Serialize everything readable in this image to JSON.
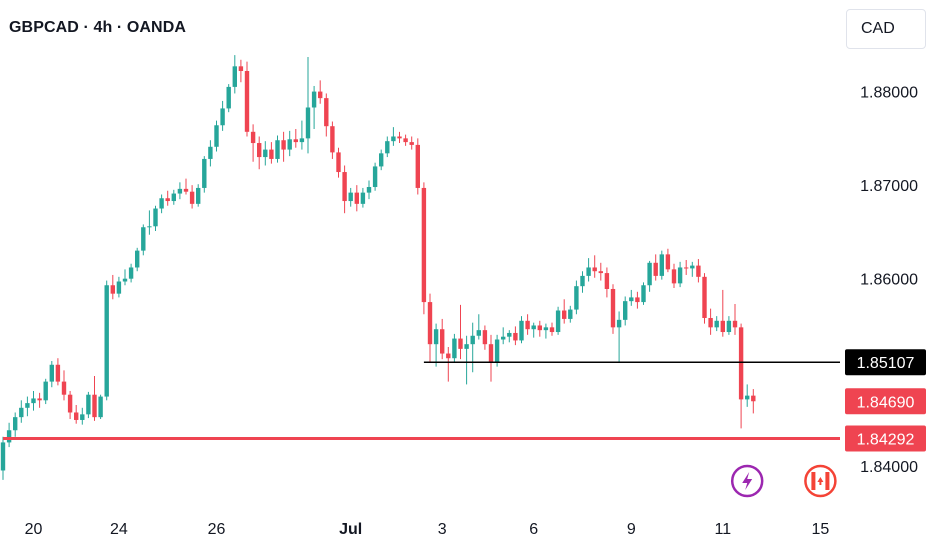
{
  "header": {
    "symbol_title": "GBPCAD · 4h · OANDA",
    "currency": "CAD"
  },
  "colors": {
    "up": "#26a69a",
    "down": "#ef4451",
    "support_line": "#ef4451",
    "level_line": "#000000",
    "events_icon": "#9c27b0",
    "flag_icon": "#f44336"
  },
  "chart_data": {
    "type": "candlestick",
    "ylim": [
      1.8372,
      1.8853
    ],
    "y_ticks": [
      {
        "value": 1.88,
        "label": "1.88000"
      },
      {
        "value": 1.87,
        "label": "1.87000"
      },
      {
        "value": 1.86,
        "label": "1.86000"
      },
      {
        "value": 1.84,
        "label": "1.84000"
      }
    ],
    "x_ticks": [
      {
        "index": 5,
        "label": "20"
      },
      {
        "index": 19,
        "label": "24"
      },
      {
        "index": 35,
        "label": "26"
      },
      {
        "index": 57,
        "label": "Jul"
      },
      {
        "index": 72,
        "label": "3"
      },
      {
        "index": 87,
        "label": "6"
      },
      {
        "index": 103,
        "label": "9"
      },
      {
        "index": 118,
        "label": "11"
      },
      {
        "index": 134,
        "label": "15"
      }
    ],
    "candles": [
      [
        1.8395,
        1.8431,
        1.8385,
        1.8425
      ],
      [
        1.8425,
        1.8446,
        1.842,
        1.8438
      ],
      [
        1.8438,
        1.8457,
        1.8431,
        1.8452
      ],
      [
        1.8452,
        1.847,
        1.8446,
        1.8462
      ],
      [
        1.8462,
        1.8474,
        1.8453,
        1.8467
      ],
      [
        1.8467,
        1.848,
        1.8459,
        1.8472
      ],
      [
        1.8472,
        1.8478,
        1.8462,
        1.847
      ],
      [
        1.847,
        1.8493,
        1.8466,
        1.849
      ],
      [
        1.849,
        1.8512,
        1.8484,
        1.8508
      ],
      [
        1.8508,
        1.8515,
        1.8486,
        1.849
      ],
      [
        1.849,
        1.8502,
        1.847,
        1.8476
      ],
      [
        1.8476,
        1.848,
        1.845,
        1.8457
      ],
      [
        1.8457,
        1.8465,
        1.8445,
        1.8449
      ],
      [
        1.8449,
        1.8462,
        1.8444,
        1.8455
      ],
      [
        1.8455,
        1.8479,
        1.8451,
        1.8476
      ],
      [
        1.8476,
        1.8496,
        1.8448,
        1.8452
      ],
      [
        1.8452,
        1.8476,
        1.845,
        1.8474
      ],
      [
        1.8474,
        1.8598,
        1.847,
        1.8593
      ],
      [
        1.8593,
        1.8604,
        1.8578,
        1.8584
      ],
      [
        1.8584,
        1.8602,
        1.858,
        1.8597
      ],
      [
        1.8597,
        1.861,
        1.8593,
        1.86
      ],
      [
        1.86,
        1.8616,
        1.8596,
        1.8612
      ],
      [
        1.8612,
        1.8633,
        1.8608,
        1.863
      ],
      [
        1.863,
        1.8658,
        1.8625,
        1.8655
      ],
      [
        1.8655,
        1.8673,
        1.8647,
        1.8656
      ],
      [
        1.8656,
        1.8678,
        1.8651,
        1.8675
      ],
      [
        1.8675,
        1.869,
        1.867,
        1.8686
      ],
      [
        1.8686,
        1.8694,
        1.8678,
        1.8683
      ],
      [
        1.8683,
        1.8695,
        1.8679,
        1.8691
      ],
      [
        1.8691,
        1.8703,
        1.8685,
        1.8696
      ],
      [
        1.8696,
        1.8707,
        1.869,
        1.8693
      ],
      [
        1.8693,
        1.87,
        1.8675,
        1.868
      ],
      [
        1.868,
        1.8701,
        1.8677,
        1.8697
      ],
      [
        1.8697,
        1.8731,
        1.8692,
        1.8728
      ],
      [
        1.8728,
        1.8748,
        1.872,
        1.8741
      ],
      [
        1.8741,
        1.8769,
        1.8736,
        1.8764
      ],
      [
        1.8764,
        1.879,
        1.8758,
        1.8782
      ],
      [
        1.8782,
        1.8808,
        1.8778,
        1.8805
      ],
      [
        1.8805,
        1.8839,
        1.8798,
        1.8827
      ],
      [
        1.8827,
        1.8834,
        1.881,
        1.8822
      ],
      [
        1.8822,
        1.8832,
        1.8752,
        1.8757
      ],
      [
        1.8757,
        1.8765,
        1.8725,
        1.8745
      ],
      [
        1.8745,
        1.8752,
        1.8717,
        1.873
      ],
      [
        1.873,
        1.8747,
        1.8721,
        1.8738
      ],
      [
        1.8738,
        1.8746,
        1.8723,
        1.8728
      ],
      [
        1.8728,
        1.8753,
        1.8724,
        1.8748
      ],
      [
        1.8748,
        1.8757,
        1.8725,
        1.8738
      ],
      [
        1.8738,
        1.8758,
        1.8731,
        1.8749
      ],
      [
        1.8749,
        1.876,
        1.874,
        1.8746
      ],
      [
        1.8746,
        1.8769,
        1.8738,
        1.875
      ],
      [
        1.875,
        1.8837,
        1.8734,
        1.8783
      ],
      [
        1.8783,
        1.8806,
        1.876,
        1.88
      ],
      [
        1.88,
        1.8812,
        1.8787,
        1.8793
      ],
      [
        1.8793,
        1.8798,
        1.8752,
        1.8763
      ],
      [
        1.8763,
        1.8768,
        1.8728,
        1.8735
      ],
      [
        1.8735,
        1.874,
        1.8708,
        1.8714
      ],
      [
        1.8714,
        1.8721,
        1.867,
        1.8683
      ],
      [
        1.8683,
        1.8697,
        1.8677,
        1.8692
      ],
      [
        1.8692,
        1.87,
        1.8672,
        1.868
      ],
      [
        1.868,
        1.8697,
        1.8676,
        1.8692
      ],
      [
        1.8692,
        1.8705,
        1.8685,
        1.8698
      ],
      [
        1.8698,
        1.8724,
        1.8694,
        1.872
      ],
      [
        1.872,
        1.8738,
        1.8716,
        1.8734
      ],
      [
        1.8734,
        1.8752,
        1.873,
        1.8747
      ],
      [
        1.8747,
        1.8762,
        1.8742,
        1.8752
      ],
      [
        1.8752,
        1.8757,
        1.8745,
        1.875
      ],
      [
        1.875,
        1.8754,
        1.8742,
        1.8746
      ],
      [
        1.8746,
        1.8752,
        1.8738,
        1.8743
      ],
      [
        1.8743,
        1.875,
        1.869,
        1.8697
      ],
      [
        1.8697,
        1.8703,
        1.8562,
        1.8575
      ],
      [
        1.8575,
        1.8584,
        1.8511,
        1.853
      ],
      [
        1.853,
        1.8552,
        1.8506,
        1.8546
      ],
      [
        1.8546,
        1.8557,
        1.8514,
        1.852
      ],
      [
        1.852,
        1.8527,
        1.849,
        1.8515
      ],
      [
        1.8515,
        1.8541,
        1.8511,
        1.8536
      ],
      [
        1.8536,
        1.8572,
        1.8514,
        1.8525
      ],
      [
        1.8525,
        1.8539,
        1.8487,
        1.853
      ],
      [
        1.853,
        1.8553,
        1.85,
        1.8539
      ],
      [
        1.8539,
        1.8562,
        1.8535,
        1.8545
      ],
      [
        1.8545,
        1.855,
        1.8524,
        1.853
      ],
      [
        1.853,
        1.854,
        1.849,
        1.851
      ],
      [
        1.851,
        1.854,
        1.8506,
        1.8535
      ],
      [
        1.8535,
        1.8548,
        1.853,
        1.8538
      ],
      [
        1.8538,
        1.8545,
        1.8532,
        1.8542
      ],
      [
        1.8542,
        1.8549,
        1.8529,
        1.8534
      ],
      [
        1.8534,
        1.856,
        1.8531,
        1.8555
      ],
      [
        1.8555,
        1.8562,
        1.854,
        1.8546
      ],
      [
        1.8546,
        1.8553,
        1.8537,
        1.855
      ],
      [
        1.855,
        1.8555,
        1.8538,
        1.8545
      ],
      [
        1.8545,
        1.8552,
        1.8536,
        1.8548
      ],
      [
        1.8548,
        1.8553,
        1.8539,
        1.8543
      ],
      [
        1.8543,
        1.857,
        1.854,
        1.8566
      ],
      [
        1.8566,
        1.8578,
        1.8552,
        1.8557
      ],
      [
        1.8557,
        1.8571,
        1.8553,
        1.8567
      ],
      [
        1.8567,
        1.8598,
        1.8562,
        1.8592
      ],
      [
        1.8592,
        1.8608,
        1.8585,
        1.8603
      ],
      [
        1.8603,
        1.8622,
        1.8597,
        1.8612
      ],
      [
        1.8612,
        1.8625,
        1.8601,
        1.8608
      ],
      [
        1.8608,
        1.8617,
        1.8598,
        1.8606
      ],
      [
        1.8606,
        1.8612,
        1.858,
        1.8589
      ],
      [
        1.8589,
        1.8594,
        1.8541,
        1.8548
      ],
      [
        1.8548,
        1.8565,
        1.851,
        1.8556
      ],
      [
        1.8556,
        1.8581,
        1.855,
        1.8576
      ],
      [
        1.8576,
        1.8588,
        1.8571,
        1.858
      ],
      [
        1.858,
        1.8586,
        1.8568,
        1.8575
      ],
      [
        1.8575,
        1.8596,
        1.8572,
        1.8593
      ],
      [
        1.8593,
        1.8619,
        1.8586,
        1.8617
      ],
      [
        1.8617,
        1.8626,
        1.8598,
        1.8603
      ],
      [
        1.8603,
        1.863,
        1.8599,
        1.8626
      ],
      [
        1.8626,
        1.8632,
        1.8607,
        1.861
      ],
      [
        1.861,
        1.8616,
        1.859,
        1.8595
      ],
      [
        1.8595,
        1.8618,
        1.8591,
        1.8612
      ],
      [
        1.8612,
        1.862,
        1.8604,
        1.8611
      ],
      [
        1.8611,
        1.8618,
        1.8602,
        1.8614
      ],
      [
        1.8614,
        1.8621,
        1.8596,
        1.8602
      ],
      [
        1.8602,
        1.8606,
        1.8552,
        1.8558
      ],
      [
        1.8558,
        1.8568,
        1.854,
        1.8548
      ],
      [
        1.8548,
        1.856,
        1.8544,
        1.8555
      ],
      [
        1.8555,
        1.8588,
        1.8538,
        1.8543
      ],
      [
        1.8543,
        1.856,
        1.854,
        1.8555
      ],
      [
        1.8555,
        1.8573,
        1.854,
        1.8548
      ],
      [
        1.8548,
        1.8552,
        1.844,
        1.8471
      ],
      [
        1.8471,
        1.8487,
        1.8463,
        1.8475
      ],
      [
        1.8475,
        1.8482,
        1.8456,
        1.8469
      ]
    ],
    "horizontal_levels": [
      {
        "value": 1.85107,
        "label": "1.85107",
        "start_index": 69,
        "line_color": "#000000",
        "tag_color": "#000000"
      },
      {
        "value": 1.84292,
        "label": "1.84292",
        "start_index": 0,
        "line_color": "#ef4451",
        "tag_color": "#ef4451"
      }
    ],
    "last_price": {
      "value": 1.8469,
      "label": "1.84690",
      "tag_color": "#ef4451"
    }
  },
  "event_icons": [
    {
      "name": "lightning-icon",
      "index": 122
    },
    {
      "name": "canada-flag-icon",
      "index": 134
    }
  ]
}
